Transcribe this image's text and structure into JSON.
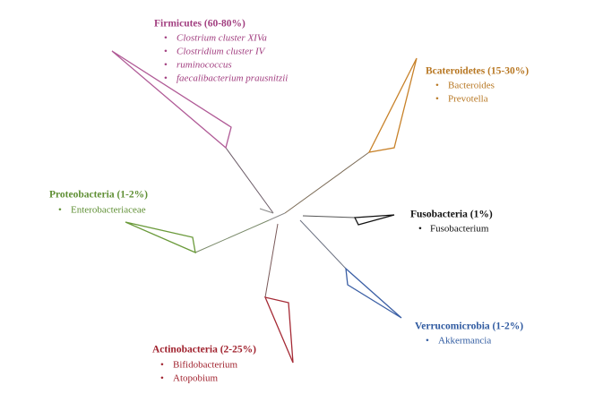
{
  "clades": [
    {
      "title": "Firmicutes (60-80%)",
      "items": [
        "Clostrium cluster XIVa",
        "Clostridium cluster IV",
        "ruminococcus",
        "faecalibacterium prausnitzii"
      ]
    },
    {
      "title": "Bcateroidetes (15-30%)",
      "items": [
        "Bacteroides",
        "Prevotella"
      ]
    },
    {
      "title": "Fusobacteria (1%)",
      "items": [
        "Fusobacterium"
      ]
    },
    {
      "title": "Verrucomicrobia (1-2%)",
      "items": [
        "Akkermancia"
      ]
    },
    {
      "title": "Actinobacteria (2-25%)",
      "items": [
        "Bifidobacterium",
        "Atopobium"
      ]
    },
    {
      "title": "Proteobacteria (1-2%)",
      "items": [
        "Enterobacteriaceae"
      ]
    }
  ]
}
